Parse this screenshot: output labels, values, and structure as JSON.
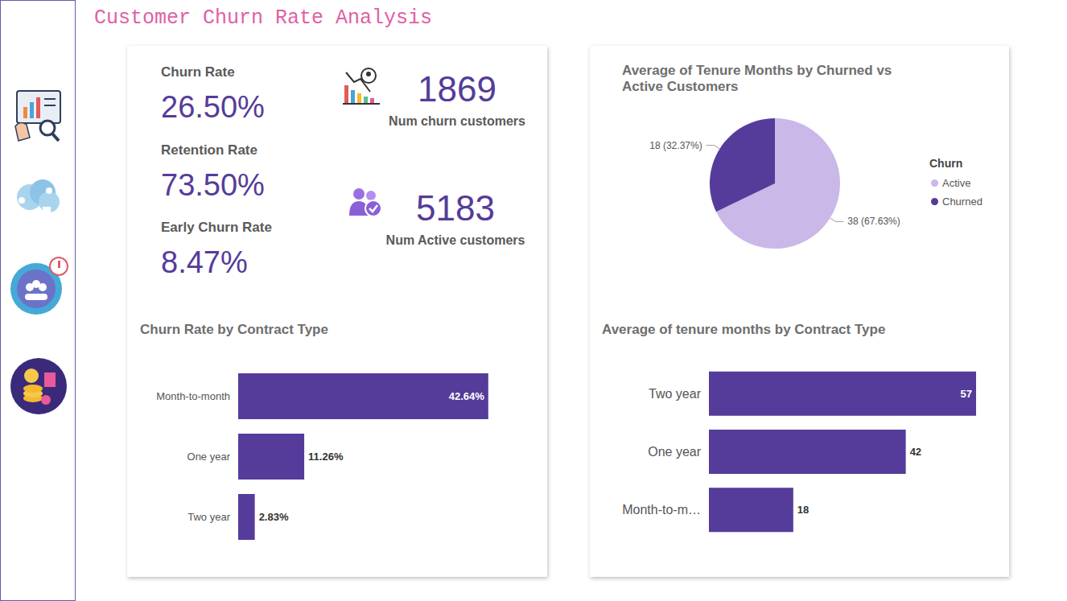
{
  "title": "Customer Churn Rate Analysis",
  "kpis": [
    {
      "label": "Churn Rate",
      "value": "26.50%"
    },
    {
      "label": "Retention Rate",
      "value": "73.50%"
    },
    {
      "label": "Early Churn Rate",
      "value": "8.47%"
    },
    {
      "label": "Num churn customers",
      "value": "1869"
    },
    {
      "label": "Num Active customers",
      "value": "5183"
    }
  ],
  "chart_data": [
    {
      "type": "pie",
      "title": "Average of Tenure Months by Churned vs Active Customers",
      "categories": [
        "Active",
        "Churned"
      ],
      "values": [
        38,
        18
      ],
      "value_labels": [
        "38 (67.63%)",
        "18 (32.37%)"
      ],
      "colors": [
        "#c9b8e8",
        "#553c9a"
      ],
      "legend": "right",
      "legend_title": "Churn",
      "data_labels": true
    },
    {
      "type": "bar",
      "title": "Churn Rate by Contract Type",
      "orientation": "horizontal",
      "categories": [
        "Month-to-month",
        "One year",
        "Two year"
      ],
      "values": [
        42.64,
        11.26,
        2.83
      ],
      "value_labels": [
        "42.64%",
        "11.26%",
        "2.83%"
      ],
      "color": "#553c9a",
      "xlim": [
        0,
        45
      ],
      "data_labels": true,
      "tick_labels": "y"
    },
    {
      "type": "bar",
      "title": "Average of tenure months by Contract Type",
      "orientation": "horizontal",
      "categories": [
        "Two year",
        "One year",
        "Month-to-m…"
      ],
      "values": [
        57,
        42,
        18
      ],
      "color": "#553c9a",
      "xlim": [
        0,
        57
      ],
      "data_labels": true,
      "tick_labels": "y"
    }
  ]
}
